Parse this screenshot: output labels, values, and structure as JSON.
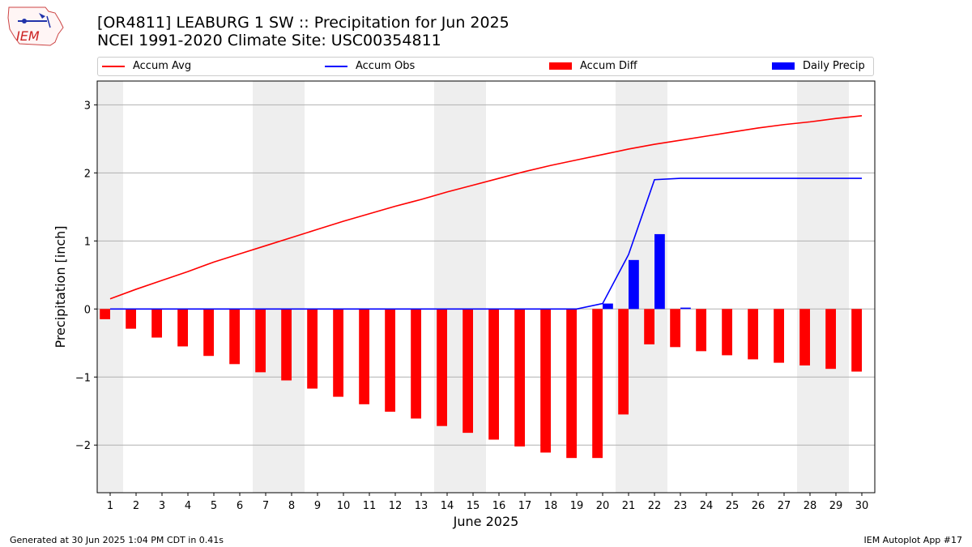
{
  "header": {
    "logo_text": "IEM",
    "title_line1": "[OR4811] LEABURG 1 SW :: Precipitation for Jun 2025",
    "title_line2": "NCEI 1991-2020 Climate Site: USC00354811"
  },
  "legend": {
    "accum_avg": "Accum Avg",
    "accum_obs": "Accum Obs",
    "accum_diff": "Accum Diff",
    "daily_precip": "Daily Precip"
  },
  "footer": {
    "generated": "Generated at 30 Jun 2025 1:04 PM CDT in 0.41s",
    "app": "IEM Autoplot App #17"
  },
  "colors": {
    "avg": "#ff0000",
    "obs": "#0000ff",
    "diff": "#ff0000",
    "precip": "#0000ff",
    "weekend_shade": "#eeeeee",
    "grid": "#b0b0b0"
  },
  "chart_data": {
    "type": "bar",
    "title": "[OR4811] LEABURG 1 SW :: Precipitation for Jun 2025",
    "subtitle": "NCEI 1991-2020 Climate Site: USC00354811",
    "xlabel": "June 2025",
    "ylabel": "Precipitation [inch]",
    "x": [
      1,
      2,
      3,
      4,
      5,
      6,
      7,
      8,
      9,
      10,
      11,
      12,
      13,
      14,
      15,
      16,
      17,
      18,
      19,
      20,
      21,
      22,
      23,
      24,
      25,
      26,
      27,
      28,
      29,
      30
    ],
    "xlim": [
      0.5,
      30.5
    ],
    "ylim": [
      -2.7,
      3.35
    ],
    "yticks": [
      3,
      2,
      1,
      0,
      -1,
      -2
    ],
    "ytick_labels": [
      "3",
      "2",
      "1",
      "0",
      "−1",
      "−2"
    ],
    "grid": "horizontal",
    "legend_position": "top",
    "shaded_days": [
      [
        1,
        1
      ],
      [
        7,
        8
      ],
      [
        14,
        15
      ],
      [
        21,
        22
      ],
      [
        28,
        29
      ]
    ],
    "series": [
      {
        "name": "Accum Avg",
        "type": "line",
        "values": [
          0.15,
          0.29,
          0.42,
          0.55,
          0.69,
          0.81,
          0.93,
          1.05,
          1.17,
          1.29,
          1.4,
          1.51,
          1.61,
          1.72,
          1.82,
          1.92,
          2.02,
          2.11,
          2.19,
          2.27,
          2.35,
          2.42,
          2.48,
          2.54,
          2.6,
          2.66,
          2.71,
          2.75,
          2.8,
          2.84
        ]
      },
      {
        "name": "Accum Obs",
        "type": "line",
        "values": [
          0,
          0,
          0,
          0,
          0,
          0,
          0,
          0,
          0,
          0,
          0,
          0,
          0,
          0,
          0,
          0,
          0,
          0,
          0,
          0.08,
          0.8,
          1.9,
          1.92,
          1.92,
          1.92,
          1.92,
          1.92,
          1.92,
          1.92,
          1.92
        ]
      },
      {
        "name": "Accum Diff",
        "type": "bar",
        "values": [
          -0.15,
          -0.29,
          -0.42,
          -0.55,
          -0.69,
          -0.81,
          -0.93,
          -1.05,
          -1.17,
          -1.29,
          -1.4,
          -1.51,
          -1.61,
          -1.72,
          -1.82,
          -1.92,
          -2.02,
          -2.11,
          -2.19,
          -2.19,
          -1.55,
          -0.52,
          -0.56,
          -0.62,
          -0.68,
          -0.74,
          -0.79,
          -0.83,
          -0.88,
          -0.92
        ]
      },
      {
        "name": "Daily Precip",
        "type": "bar",
        "values": [
          0,
          0,
          0,
          0,
          0,
          0,
          0,
          0,
          0,
          0,
          0,
          0,
          0,
          0,
          0,
          0,
          0,
          0,
          0,
          0.08,
          0.72,
          1.1,
          0.02,
          0,
          0,
          0,
          0,
          0,
          0,
          0
        ]
      }
    ]
  }
}
